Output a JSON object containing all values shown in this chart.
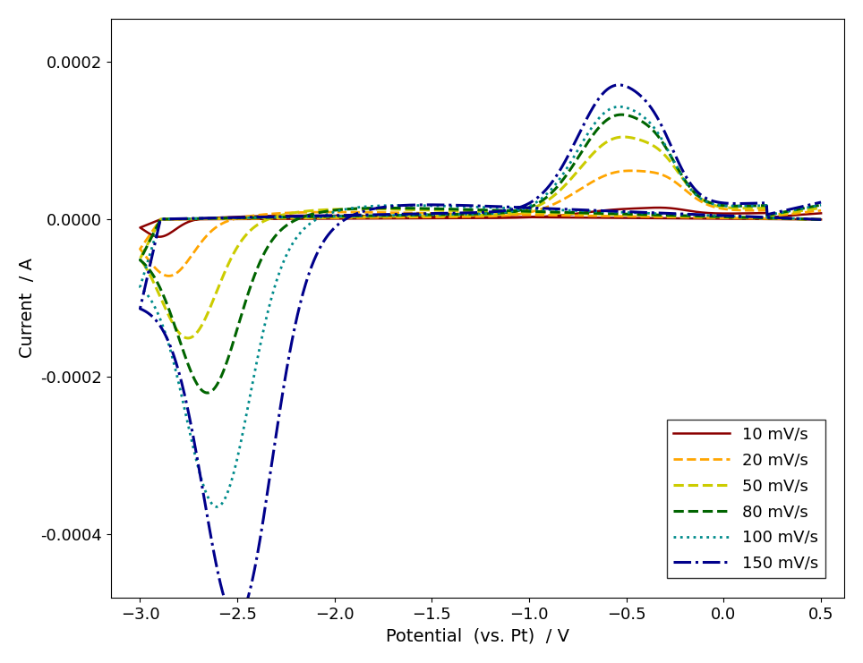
{
  "xlabel": "Potential  (vs. Pt)  / V",
  "ylabel": "Current  / A",
  "xlim": [
    -3.15,
    0.62
  ],
  "ylim": [
    -0.00048,
    0.000255
  ],
  "xticks": [
    -3.0,
    -2.5,
    -2.0,
    -1.5,
    -1.0,
    -0.5,
    0.0,
    0.5
  ],
  "yticks": [
    -0.0004,
    -0.0002,
    0.0,
    0.0002
  ],
  "background_color": "#ffffff",
  "series": [
    {
      "label": "10 mV/s",
      "color": "#8B0000",
      "linestyle": "solid",
      "linewidth": 1.8,
      "scan_rate": 10
    },
    {
      "label": "20 mV/s",
      "color": "#FFA500",
      "linestyle": "dashed",
      "linewidth": 2.0,
      "scan_rate": 20
    },
    {
      "label": "50 mV/s",
      "color": "#CCCC00",
      "linestyle": "dashed",
      "linewidth": 2.2,
      "scan_rate": 50
    },
    {
      "label": "80 mV/s",
      "color": "#006400",
      "linestyle": "dashed",
      "linewidth": 2.2,
      "scan_rate": 80
    },
    {
      "label": "100 mV/s",
      "color": "#008B8B",
      "linestyle": "dotted",
      "linewidth": 2.0,
      "scan_rate": 100
    },
    {
      "label": "150 mV/s",
      "color": "#00008B",
      "linestyle": "dashdot",
      "linewidth": 2.2,
      "scan_rate": 150
    }
  ],
  "fontsize_label": 14,
  "fontsize_tick": 13,
  "fontsize_legend": 13,
  "cv_params": {
    "10": {
      "Ipc": -2.2e-05,
      "Epc": -2.9,
      "sigma_c": 0.08,
      "Ipa": 1e-05,
      "Epa": -0.5,
      "sigma_a": 0.22,
      "Ipa2": 4e-06,
      "Epa2": -0.28,
      "slope_fwd": -2e-06,
      "slope_rev": 1e-06
    },
    "20": {
      "Ipc": -6.5e-05,
      "Epc": -2.85,
      "sigma_c": 0.12,
      "Ipa": 5.5e-05,
      "Epa": -0.52,
      "sigma_a": 0.22,
      "Ipa2": 1.5e-05,
      "Epa2": -0.28,
      "slope_fwd": -4e-06,
      "slope_rev": 2e-06
    },
    "50": {
      "Ipc": -0.00013,
      "Epc": -2.75,
      "sigma_c": 0.14,
      "Ipa": 9.5e-05,
      "Epa": -0.54,
      "sigma_a": 0.2,
      "Ipa2": 2.5e-05,
      "Epa2": -0.3,
      "slope_fwd": -6e-06,
      "slope_rev": 3e-06
    },
    "80": {
      "Ipc": -0.000185,
      "Epc": -2.65,
      "sigma_c": 0.15,
      "Ipa": 0.00012,
      "Epa": -0.55,
      "sigma_a": 0.19,
      "Ipa2": 3e-05,
      "Epa2": -0.32,
      "slope_fwd": -7e-06,
      "slope_rev": 4e-06
    },
    "100": {
      "Ipc": -0.0003,
      "Epc": -2.6,
      "sigma_c": 0.16,
      "Ipa": 0.00013,
      "Epa": -0.56,
      "sigma_a": 0.19,
      "Ipa2": 3.2e-05,
      "Epa2": -0.33,
      "slope_fwd": -9e-06,
      "slope_rev": 4e-06
    },
    "150": {
      "Ipc": -0.00041,
      "Epc": -2.5,
      "sigma_c": 0.17,
      "Ipa": 0.000155,
      "Epa": -0.56,
      "sigma_a": 0.19,
      "Ipa2": 3.5e-05,
      "Epa2": -0.33,
      "slope_fwd": -1e-05,
      "slope_rev": 5e-06
    }
  }
}
